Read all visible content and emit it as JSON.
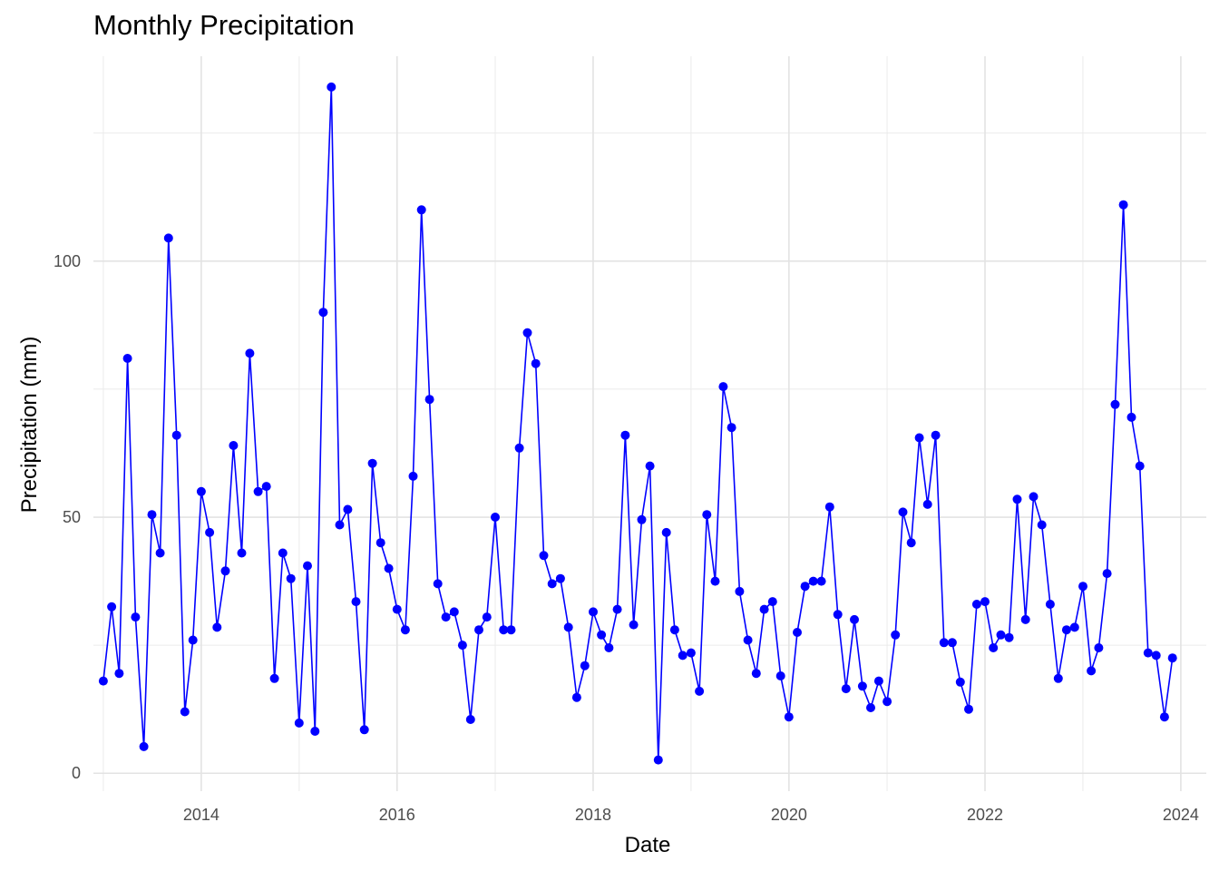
{
  "chart_data": {
    "type": "line",
    "title": "Monthly Precipitation",
    "xlabel": "Date",
    "ylabel": "Precipitation (mm)",
    "x_ticks": [
      "2014",
      "2016",
      "2018",
      "2020",
      "2022",
      "2024"
    ],
    "y_ticks": [
      "0",
      "50",
      "100"
    ],
    "xlim": [
      "2012-11-25",
      "2024-04-05"
    ],
    "ylim": [
      -3.5,
      140
    ],
    "grid": true,
    "legend": "none",
    "series_color": "#0000FF",
    "series": [
      {
        "x": [
          "2013-01",
          "2013-02",
          "2013-03",
          "2013-04",
          "2013-05",
          "2013-06",
          "2013-07",
          "2013-08",
          "2013-09",
          "2013-10",
          "2013-11",
          "2013-12",
          "2014-01",
          "2014-02",
          "2014-03",
          "2014-04",
          "2014-05",
          "2014-06",
          "2014-07",
          "2014-08",
          "2014-09",
          "2014-10",
          "2014-11",
          "2014-12",
          "2015-01",
          "2015-02",
          "2015-03",
          "2015-04",
          "2015-05",
          "2015-06",
          "2015-07",
          "2015-08",
          "2015-09",
          "2015-10",
          "2015-11",
          "2015-12",
          "2016-01",
          "2016-02",
          "2016-03",
          "2016-04",
          "2016-05",
          "2016-06",
          "2016-07",
          "2016-08",
          "2016-09",
          "2016-10",
          "2016-11",
          "2016-12",
          "2017-01",
          "2017-02",
          "2017-03",
          "2017-04",
          "2017-05",
          "2017-06",
          "2017-07",
          "2017-08",
          "2017-09",
          "2017-10",
          "2017-11",
          "2017-12",
          "2018-01",
          "2018-02",
          "2018-03",
          "2018-04",
          "2018-05",
          "2018-06",
          "2018-07",
          "2018-08",
          "2018-09",
          "2018-10",
          "2018-11",
          "2018-12",
          "2019-01",
          "2019-02",
          "2019-03",
          "2019-04",
          "2019-05",
          "2019-06",
          "2019-07",
          "2019-08",
          "2019-09",
          "2019-10",
          "2019-11",
          "2019-12",
          "2020-01",
          "2020-02",
          "2020-03",
          "2020-04",
          "2020-05",
          "2020-06",
          "2020-07",
          "2020-08",
          "2020-09",
          "2020-10",
          "2020-11",
          "2020-12",
          "2021-01",
          "2021-02",
          "2021-03",
          "2021-04",
          "2021-05",
          "2021-06",
          "2021-07",
          "2021-08",
          "2021-09",
          "2021-10",
          "2021-11",
          "2021-12",
          "2022-01",
          "2022-02",
          "2022-03",
          "2022-04",
          "2022-05",
          "2022-06",
          "2022-07",
          "2022-08",
          "2022-09",
          "2022-10",
          "2022-11",
          "2022-12",
          "2023-01",
          "2023-02",
          "2023-03",
          "2023-04",
          "2023-05",
          "2023-06",
          "2023-07",
          "2023-08",
          "2023-09",
          "2023-10",
          "2023-11",
          "2023-12"
        ],
        "y": [
          18.0,
          32.5,
          19.5,
          81.0,
          30.5,
          5.2,
          50.5,
          43.0,
          104.5,
          66.0,
          12.0,
          26.0,
          55.0,
          47.0,
          28.5,
          39.5,
          64.0,
          43.0,
          82.0,
          55.0,
          56.0,
          18.5,
          43.0,
          38.0,
          9.8,
          40.5,
          8.2,
          90.0,
          134.0,
          48.5,
          51.5,
          33.5,
          8.5,
          60.5,
          45.0,
          40.0,
          32.0,
          28.0,
          58.0,
          110.0,
          73.0,
          37.0,
          30.5,
          31.5,
          25.0,
          10.5,
          28.0,
          30.5,
          50.0,
          28.0,
          28.0,
          63.5,
          86.0,
          80.0,
          42.5,
          37.0,
          38.0,
          28.5,
          14.8,
          21.0,
          31.5,
          27.0,
          24.5,
          32.0,
          66.0,
          29.0,
          49.5,
          60.0,
          2.6,
          47.0,
          28.0,
          23.0,
          23.5,
          16.0,
          50.5,
          37.5,
          75.5,
          67.5,
          35.5,
          26.0,
          19.5,
          32.0,
          33.5,
          19.0,
          11.0,
          27.5,
          36.5,
          37.5,
          37.5,
          52.0,
          31.0,
          16.5,
          30.0,
          17.0,
          12.8,
          18.0,
          14.0,
          27.0,
          51.0,
          45.0,
          65.5,
          52.5,
          66.0,
          25.5,
          25.5,
          17.8,
          12.5,
          33.0,
          33.5,
          24.5,
          27.0,
          26.5,
          53.5,
          30.0,
          54.0,
          48.5,
          33.0,
          18.5,
          28.0,
          28.5,
          36.5,
          20.0,
          24.5,
          39.0,
          72.0,
          111.0,
          69.5,
          60.0,
          23.5,
          23.0,
          11.0,
          22.5
        ]
      }
    ]
  }
}
